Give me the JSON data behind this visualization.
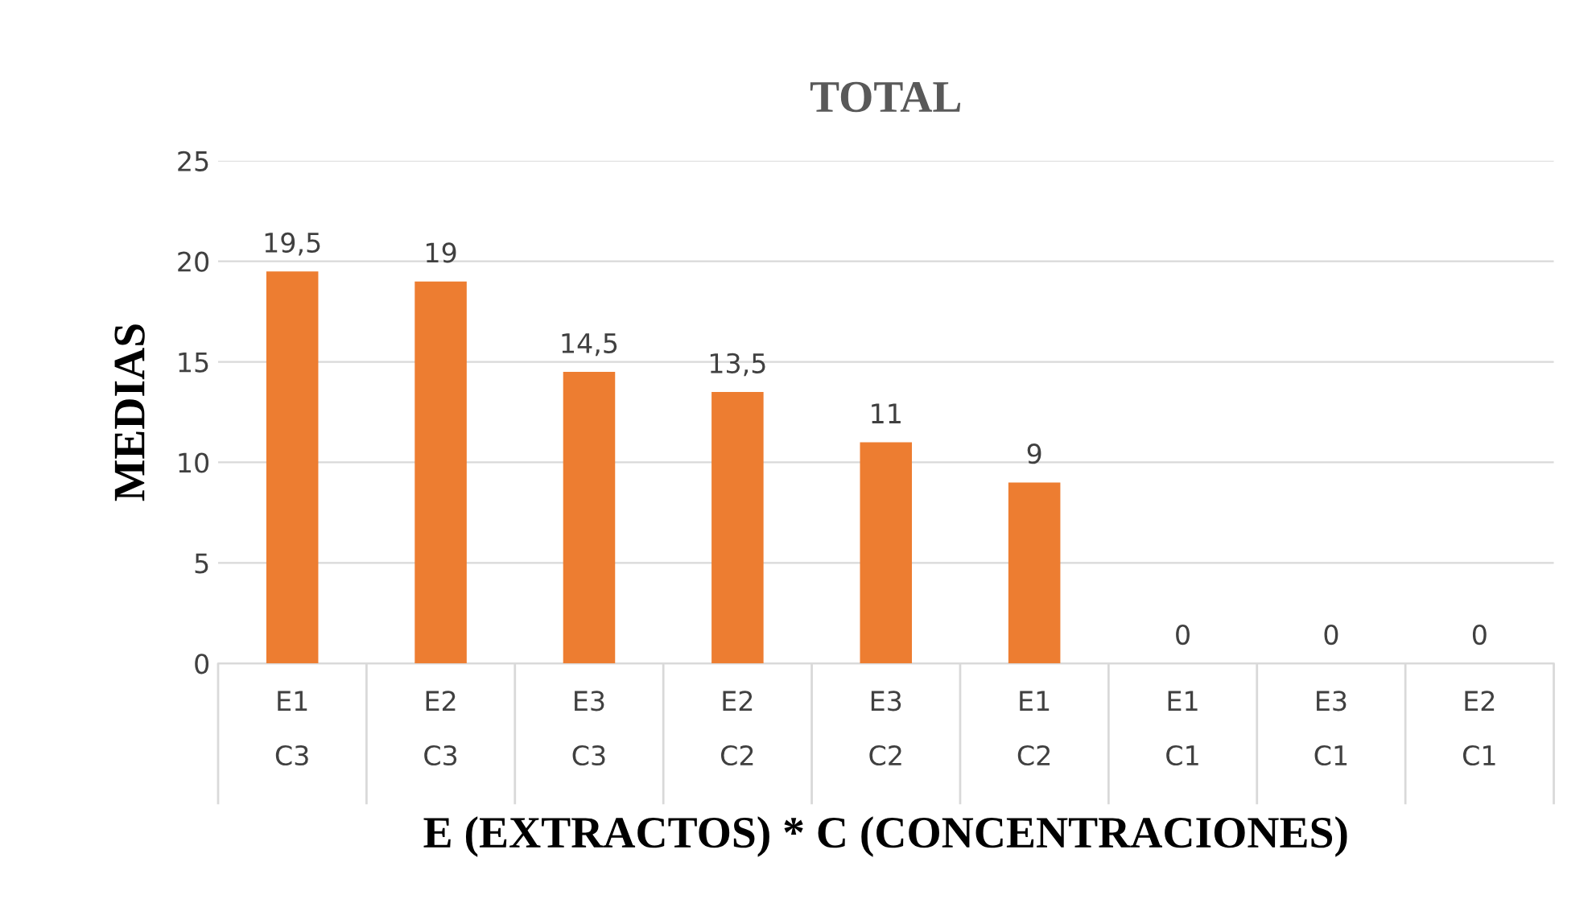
{
  "chart_data": {
    "type": "bar",
    "title": "TOTAL",
    "xlabel": "E (EXTRACTOS) * C (CONCENTRACIONES)",
    "ylabel": "MEDIAS",
    "categories": [
      "E1\nC3",
      "E2\nC3",
      "E3\nC3",
      "E2\nC2",
      "E3\nC2",
      "E1\nC2",
      "E1\nC1",
      "E3\nC1",
      "E2\nC1"
    ],
    "values": [
      19.5,
      19,
      14.5,
      13.5,
      11,
      9,
      0,
      0,
      0
    ],
    "value_labels": [
      "19,5",
      "19",
      "14,5",
      "13,5",
      "11",
      "9",
      "0",
      "0",
      "0"
    ],
    "color": "#ed7d31",
    "ylim": [
      0,
      25
    ],
    "yticks": [
      0,
      5,
      10,
      15,
      20,
      25
    ],
    "grid": "y",
    "legend": false
  }
}
